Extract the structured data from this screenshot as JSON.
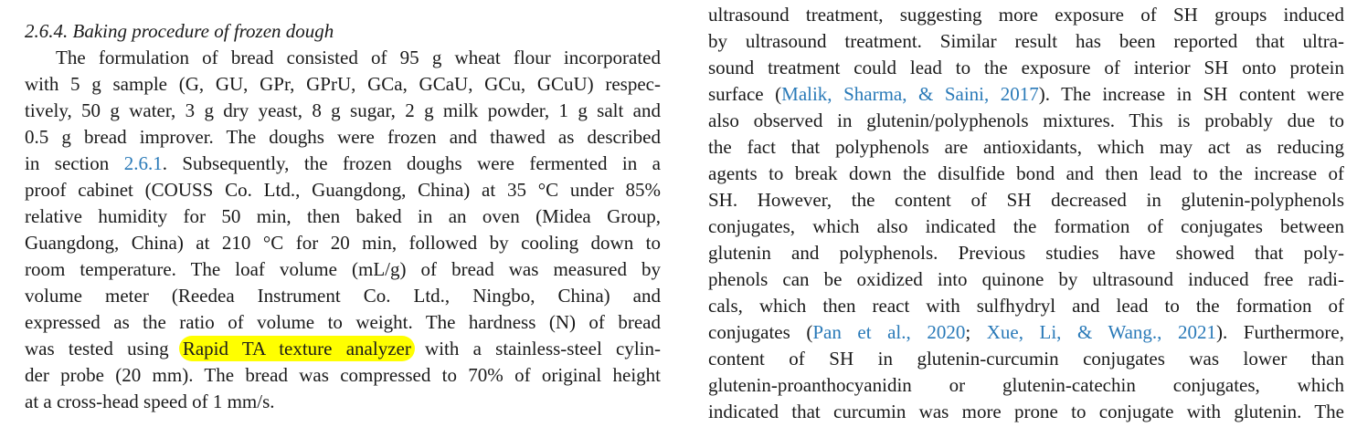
{
  "left_column": {
    "heading": "2.6.4. Baking procedure of frozen dough",
    "lines": [
      [
        {
          "t": "The formulation of bread consisted of 95 g wheat flour incorporated"
        }
      ],
      [
        {
          "t": "with 5 g sample (G, GU, GPr, GPrU, GCa, GCaU, GCu, GCuU) respec-"
        }
      ],
      [
        {
          "t": "tively, 50 g water, 3 g dry yeast, 8 g sugar, 2 g milk powder, 1 g salt and"
        }
      ],
      [
        {
          "t": "0.5 g bread improver. The doughs were frozen and thawed as described"
        }
      ],
      [
        {
          "t": "in section "
        },
        {
          "t": "2.6.1",
          "link": true
        },
        {
          "t": ". Subsequently, the frozen doughs were fermented in a"
        }
      ],
      [
        {
          "t": "proof cabinet (COUSS Co. Ltd., Guangdong, China) at 35 °C under 85%"
        }
      ],
      [
        {
          "t": "relative humidity for 50 min, then baked in an oven (Midea Group,"
        }
      ],
      [
        {
          "t": "Guangdong, China) at 210 °C for 20 min, followed by cooling down to"
        }
      ],
      [
        {
          "t": "room temperature. The loaf volume (mL/g) of bread was measured by"
        }
      ],
      [
        {
          "t": "volume meter (Reedea Instrument Co. Ltd., Ningbo, China) and"
        }
      ],
      [
        {
          "t": "expressed as the ratio of volume to weight. The hardness (N) of bread"
        }
      ],
      [
        {
          "t": "was tested using "
        },
        {
          "t": "Rapid TA texture analyzer",
          "hl": true
        },
        {
          "t": " with a stainless-steel cylin-"
        }
      ],
      [
        {
          "t": "der probe (20 mm). The bread was compressed to 70% of original height"
        }
      ],
      [
        {
          "t": "at a cross-head speed of 1 mm/s."
        }
      ]
    ]
  },
  "right_column": {
    "lines": [
      [
        {
          "t": "ultrasound treatment, suggesting more exposure of SH groups induced"
        }
      ],
      [
        {
          "t": "by ultrasound treatment. Similar result has been reported that ultra-"
        }
      ],
      [
        {
          "t": "sound treatment could lead to the exposure of interior SH onto protein"
        }
      ],
      [
        {
          "t": "surface ("
        },
        {
          "t": "Malik, Sharma, & Saini, 2017",
          "link": true
        },
        {
          "t": "). The increase in SH content were"
        }
      ],
      [
        {
          "t": "also observed in glutenin/polyphenols mixtures. This is probably due to"
        }
      ],
      [
        {
          "t": "the fact that polyphenols are antioxidants, which may act as reducing"
        }
      ],
      [
        {
          "t": "agents to break down the disulfide bond and then lead to the increase of"
        }
      ],
      [
        {
          "t": "SH. However, the content of SH decreased in glutenin-polyphenols"
        }
      ],
      [
        {
          "t": "conjugates, which also indicated the formation of conjugates between"
        }
      ],
      [
        {
          "t": "glutenin and polyphenols. Previous studies have showed that poly-"
        }
      ],
      [
        {
          "t": "phenols can be oxidized into quinone by ultrasound induced free radi-"
        }
      ],
      [
        {
          "t": "cals, which then react with sulfhydryl and lead to the formation of"
        }
      ],
      [
        {
          "t": "conjugates ("
        },
        {
          "t": "Pan et al., 2020",
          "link": true
        },
        {
          "t": "; "
        },
        {
          "t": "Xue, Li, & Wang., 2021",
          "link": true
        },
        {
          "t": "). Furthermore,"
        }
      ],
      [
        {
          "t": "content of SH in glutenin-curcumin conjugates was lower than"
        }
      ],
      [
        {
          "t": "glutenin-proanthocyanidin or glutenin-catechin conjugates, which"
        }
      ],
      [
        {
          "t": "indicated that curcumin was more prone to conjugate with glutenin. The"
        }
      ]
    ]
  },
  "colors": {
    "link": "#2a7ab8",
    "highlight": "#ffff00",
    "text": "#1a1a1a"
  }
}
